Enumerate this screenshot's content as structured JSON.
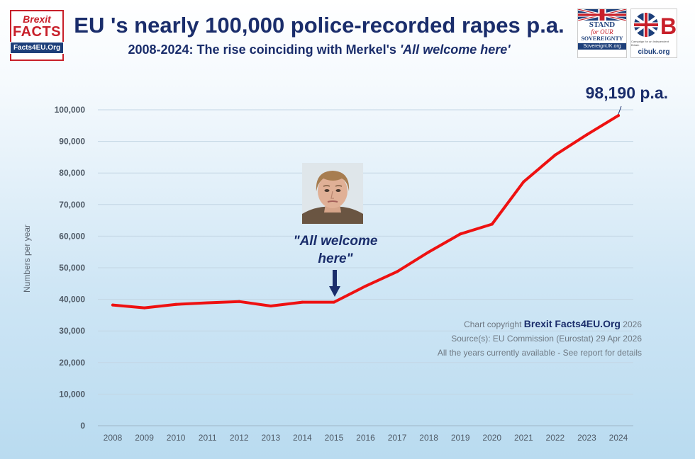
{
  "header": {
    "title": "EU 's nearly 100,000 police-recorded rapes p.a.",
    "subtitle_main": "2008-2024: The rise coinciding with Merkel's ",
    "subtitle_quote": "'All welcome here'"
  },
  "logos": {
    "brexit_facts": {
      "line1": "Brexit",
      "line2": "FACTS",
      "line3": "Facts4EU.Org"
    },
    "stand": {
      "line1": "STAND",
      "line2": "for OUR",
      "line3": "SOVEREIGNTY",
      "line4": "SovereignUK.org"
    },
    "cib": {
      "mark": "CIB",
      "tagline": "Campaign for an Independent Britain",
      "url": "cibuk.org"
    }
  },
  "annotation": {
    "quote": "\"All welcome here\""
  },
  "end_label": "98,190  p.a.",
  "copyright": {
    "prefix": "Chart copyright ",
    "brand": "Brexit Facts4EU.Org",
    "year": " 2026",
    "source": "Source(s): EU Commission (Eurostat) 29 Apr 2026",
    "note": "All the years currently available - See report for details"
  },
  "colors": {
    "line": "#ee1111",
    "title": "#1a2d6b",
    "grid": "#c3d6e4"
  },
  "chart_data": {
    "type": "line",
    "title": "EU 's nearly 100,000 police-recorded rapes p.a.",
    "subtitle": "2008-2024: The rise coinciding with Merkel's 'All welcome here'",
    "xlabel": "",
    "ylabel": "Numbers per year",
    "x": [
      "2008",
      "2009",
      "2010",
      "2011",
      "2012",
      "2013",
      "2014",
      "2015",
      "2016",
      "2017",
      "2018",
      "2019",
      "2020",
      "2021",
      "2022",
      "2023",
      "2024"
    ],
    "series": [
      {
        "values": [
          38200,
          37300,
          38400,
          38900,
          39300,
          37900,
          39100,
          39100,
          44200,
          48800,
          55000,
          60700,
          63800,
          77200,
          85700,
          92100,
          98190
        ]
      }
    ],
    "ylim": [
      0,
      100000
    ],
    "yticks": [
      0,
      10000,
      20000,
      30000,
      40000,
      50000,
      60000,
      70000,
      80000,
      90000,
      100000
    ],
    "ytick_labels": [
      "0",
      "10,000",
      "20,000",
      "30,000",
      "40,000",
      "50,000",
      "60,000",
      "70,000",
      "80,000",
      "90,000",
      "100,000"
    ],
    "grid": true,
    "annotations": [
      {
        "x": "2015",
        "text": "\"All welcome here\""
      },
      {
        "x": "2024",
        "text": "98,190  p.a."
      }
    ]
  }
}
